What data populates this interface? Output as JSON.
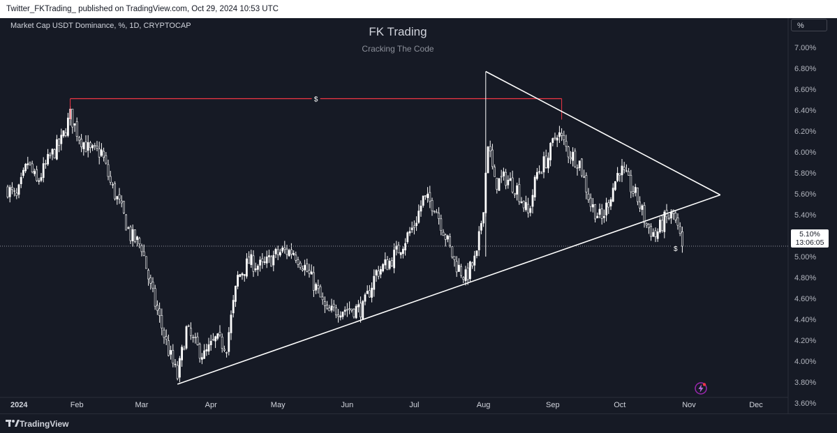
{
  "header": {
    "publish_info": "Twitter_FKTrading_ published on TradingView.com, Oct 29, 2024 10:53 UTC"
  },
  "chart": {
    "symbol_label": "Market Cap USDT Dominance, %, 1D, CRYPTOCAP",
    "unit_button": "%",
    "current_price": "5.10%",
    "countdown": "13:06:05",
    "flag_icon": "bolt-icon",
    "brand_name": "TradingView"
  },
  "colors": {
    "background": "#161a25",
    "candle": "#ffffff",
    "resistance": "#f23645",
    "trendline": "#ffffff",
    "axis_text": "#b2b5be"
  },
  "chart_data": {
    "type": "candlestick",
    "title": "FK Trading",
    "subtitle": "Cracking The Code",
    "ylabel": "%",
    "ylim": [
      3.55,
      7.1
    ],
    "y_ticks": [
      "7.00%",
      "6.80%",
      "6.60%",
      "6.40%",
      "6.20%",
      "6.00%",
      "5.80%",
      "5.60%",
      "5.40%",
      "5.20%",
      "5.00%",
      "4.80%",
      "4.60%",
      "4.40%",
      "4.20%",
      "4.00%",
      "3.80%",
      "3.60%"
    ],
    "x_ticks": [
      "2024",
      "Feb",
      "Mar",
      "Apr",
      "May",
      "Jun",
      "Jul",
      "Aug",
      "Sep",
      "Oct",
      "Nov",
      "Dec"
    ],
    "x_tick_dates": [
      "2024-01-01",
      "2024-02-01",
      "2024-03-01",
      "2024-04-01",
      "2024-05-01",
      "2024-06-01",
      "2024-07-01",
      "2024-08-01",
      "2024-09-01",
      "2024-10-01",
      "2024-11-01",
      "2024-12-01"
    ],
    "series": [
      {
        "anchors": [
          [
            "2024-01-01",
            5.65
          ],
          [
            "2024-01-05",
            5.55
          ],
          [
            "2024-01-10",
            5.9
          ],
          [
            "2024-01-14",
            5.7
          ],
          [
            "2024-01-20",
            5.95
          ],
          [
            "2024-01-25",
            6.1
          ],
          [
            "2024-01-29",
            6.35
          ],
          [
            "2024-02-02",
            6.15
          ],
          [
            "2024-02-07",
            6.0
          ],
          [
            "2024-02-12",
            6.0
          ],
          [
            "2024-02-16",
            5.7
          ],
          [
            "2024-02-20",
            5.5
          ],
          [
            "2024-02-25",
            5.2
          ],
          [
            "2024-03-01",
            5.1
          ],
          [
            "2024-03-05",
            4.7
          ],
          [
            "2024-03-09",
            4.4
          ],
          [
            "2024-03-13",
            4.1
          ],
          [
            "2024-03-17",
            3.85
          ],
          [
            "2024-03-21",
            4.3
          ],
          [
            "2024-03-25",
            4.15
          ],
          [
            "2024-03-29",
            4.05
          ],
          [
            "2024-04-03",
            4.2
          ],
          [
            "2024-04-08",
            4.15
          ],
          [
            "2024-04-13",
            4.8
          ],
          [
            "2024-04-18",
            4.95
          ],
          [
            "2024-04-24",
            4.9
          ],
          [
            "2024-04-29",
            5.0
          ],
          [
            "2024-05-03",
            5.05
          ],
          [
            "2024-05-08",
            5.05
          ],
          [
            "2024-05-13",
            4.9
          ],
          [
            "2024-05-18",
            4.7
          ],
          [
            "2024-05-23",
            4.45
          ],
          [
            "2024-05-28",
            4.5
          ],
          [
            "2024-06-02",
            4.5
          ],
          [
            "2024-06-08",
            4.5
          ],
          [
            "2024-06-14",
            4.85
          ],
          [
            "2024-06-20",
            4.95
          ],
          [
            "2024-06-25",
            5.1
          ],
          [
            "2024-07-01",
            5.3
          ],
          [
            "2024-07-05",
            5.55
          ],
          [
            "2024-07-10",
            5.5
          ],
          [
            "2024-07-15",
            5.2
          ],
          [
            "2024-07-19",
            4.95
          ],
          [
            "2024-07-24",
            4.8
          ],
          [
            "2024-07-29",
            5.0
          ],
          [
            "2024-08-01",
            5.5
          ],
          [
            "2024-08-03",
            6.1
          ],
          [
            "2024-08-06",
            5.7
          ],
          [
            "2024-08-11",
            5.75
          ],
          [
            "2024-08-16",
            5.65
          ],
          [
            "2024-08-21",
            5.4
          ],
          [
            "2024-08-25",
            5.8
          ],
          [
            "2024-08-30",
            5.95
          ],
          [
            "2024-09-03",
            6.2
          ],
          [
            "2024-09-08",
            6.0
          ],
          [
            "2024-09-13",
            5.9
          ],
          [
            "2024-09-18",
            5.5
          ],
          [
            "2024-09-23",
            5.35
          ],
          [
            "2024-09-27",
            5.6
          ],
          [
            "2024-10-01",
            5.85
          ],
          [
            "2024-10-05",
            5.7
          ],
          [
            "2024-10-09",
            5.55
          ],
          [
            "2024-10-13",
            5.3
          ],
          [
            "2024-10-17",
            5.2
          ],
          [
            "2024-10-21",
            5.35
          ],
          [
            "2024-10-25",
            5.4
          ],
          [
            "2024-10-29",
            5.1
          ]
        ]
      }
    ],
    "last_value": 5.1,
    "annotations": [
      {
        "type": "horizontal_level",
        "label": "$",
        "value": 6.51,
        "x0": "2024-01-29",
        "x1": "2024-09-05"
      },
      {
        "type": "trendline",
        "from": [
          "2024-03-17",
          3.78
        ],
        "to": [
          "2024-11-15",
          5.59
        ]
      },
      {
        "type": "trendline",
        "from": [
          "2024-08-02",
          6.77
        ],
        "to": [
          "2024-11-15",
          5.59
        ]
      },
      {
        "type": "vertical",
        "at": "2024-08-02",
        "from": 5.0,
        "to": 6.77
      },
      {
        "type": "marker",
        "label": "$",
        "at": "2024-10-26",
        "value": 5.08
      }
    ]
  }
}
